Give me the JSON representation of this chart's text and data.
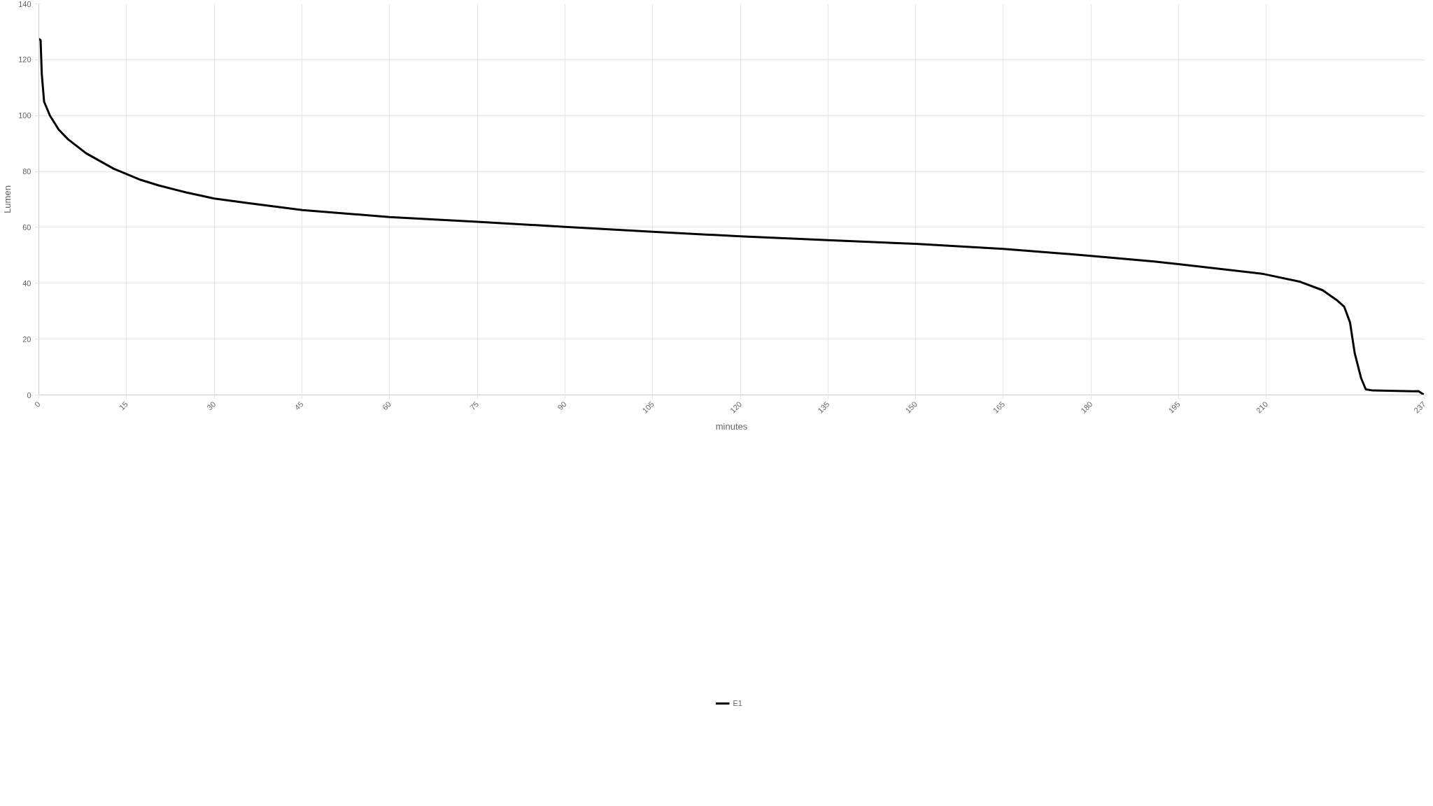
{
  "chart_data": {
    "type": "line",
    "xlabel": "minutes",
    "ylabel": "Lumen",
    "x": [
      0,
      0.3,
      0.5,
      0.9,
      1.9,
      3.4,
      5,
      8.1,
      12.8,
      15.1,
      17.4,
      20.5,
      25.2,
      30,
      36,
      45.1,
      60,
      75,
      90,
      105,
      120,
      135,
      150,
      165,
      180,
      190.8,
      195.2,
      209.5,
      215.8,
      219.6,
      222,
      223.3,
      224.3,
      225.1,
      226.2,
      227,
      228.2,
      235.1,
      236,
      237
    ],
    "series": [
      {
        "name": "E1",
        "color": "#000000",
        "values": [
          127.5,
          127,
          115,
          105,
          100,
          95,
          91.5,
          86.5,
          81,
          79,
          77,
          75,
          72.5,
          70.3,
          68.6,
          66.2,
          63.7,
          62,
          60.2,
          58.4,
          56.8,
          55.4,
          54.1,
          52.3,
          49.8,
          47.8,
          46.8,
          43.3,
          40.5,
          37.5,
          34,
          31.6,
          26,
          15,
          6,
          2,
          1.6,
          1.3,
          1.4,
          0
        ]
      }
    ],
    "xlim": [
      0,
      237
    ],
    "xticks": [
      0,
      15,
      30,
      45,
      60,
      75,
      90,
      105,
      120,
      135,
      150,
      165,
      180,
      195,
      210,
      237
    ],
    "ylim": [
      0,
      140
    ],
    "yticks": [
      0,
      20,
      40,
      60,
      80,
      100,
      120,
      140
    ],
    "grid": true,
    "legend": "bottom"
  }
}
